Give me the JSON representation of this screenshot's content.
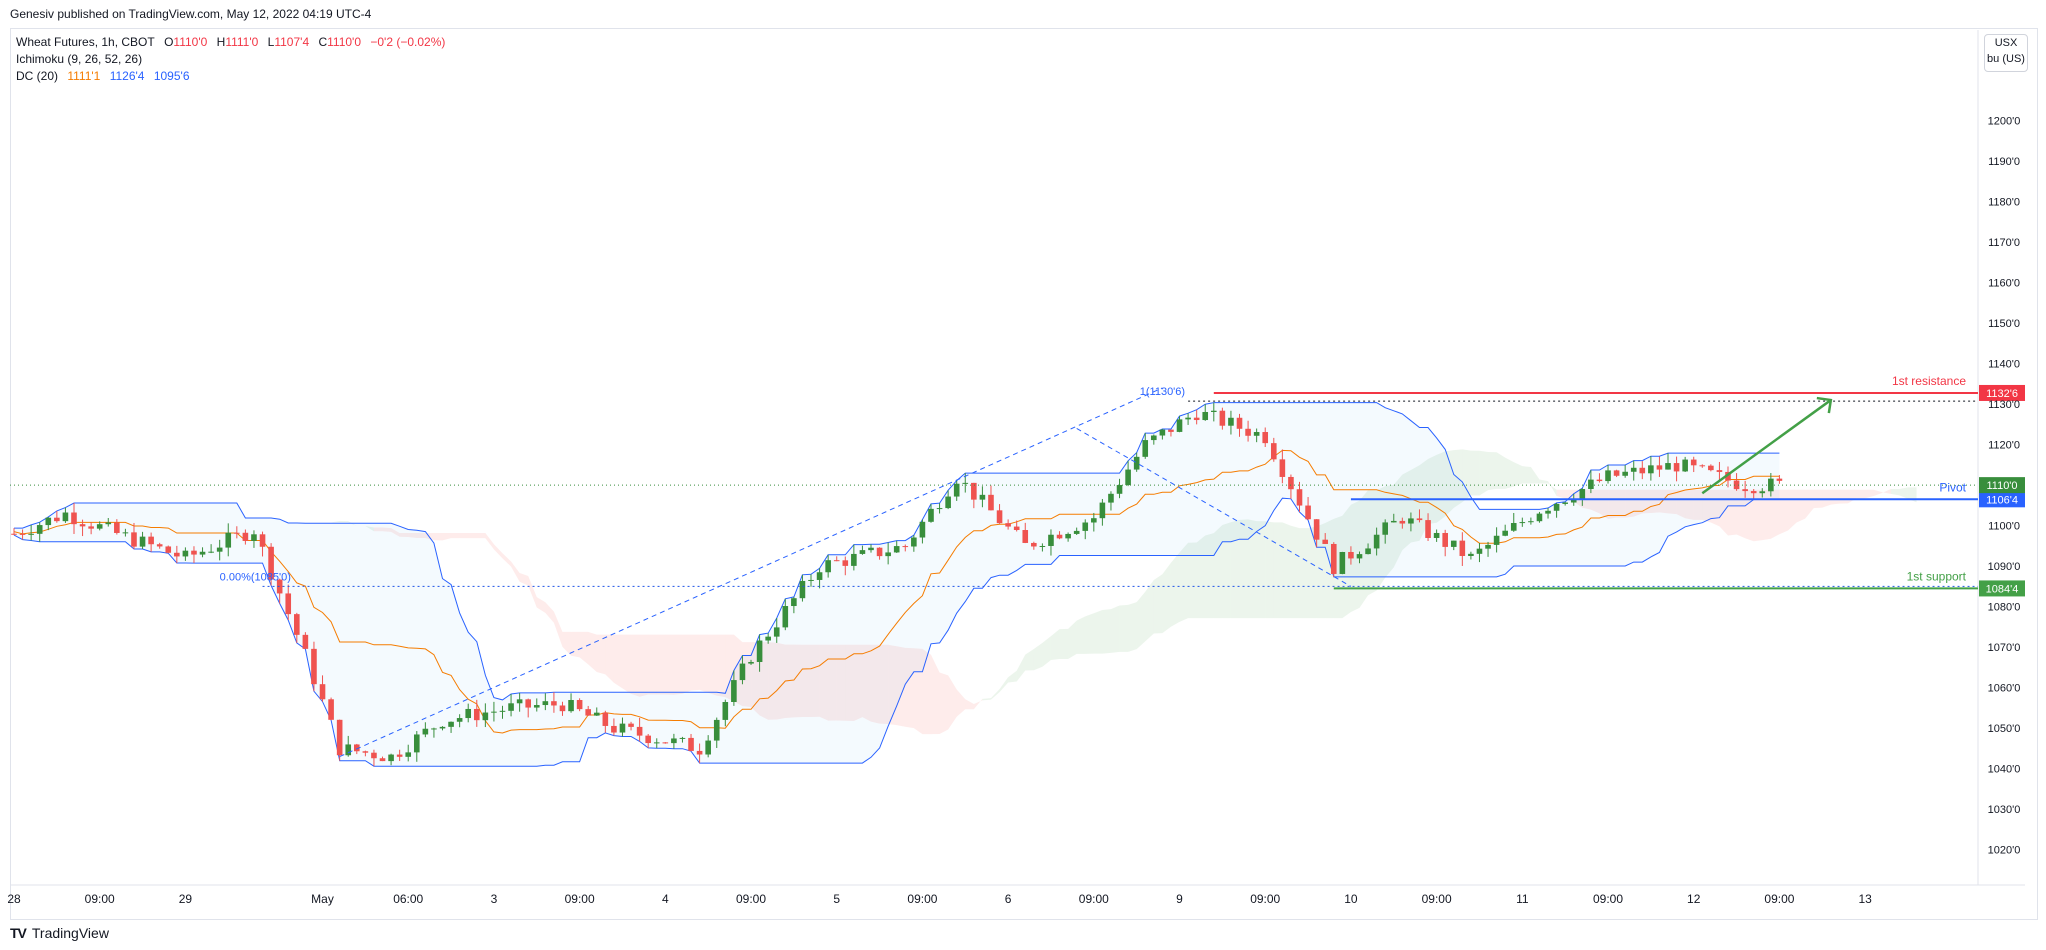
{
  "header": {
    "published": "Genesiv published on TradingView.com, May 12, 2022 04:19 UTC-4"
  },
  "legend": {
    "symbol": "Wheat Futures, 1h, CBOT",
    "ohlc": [
      {
        "k": "O",
        "v": "1110'0"
      },
      {
        "k": "H",
        "v": "1111'0"
      },
      {
        "k": "L",
        "v": "1107'4"
      },
      {
        "k": "C",
        "v": "1110'0"
      }
    ],
    "change": "−0'2 (−0.02%)",
    "ichimoku": "Ichimoku (9, 26, 52, 26)",
    "dc_label": "DC (20)",
    "dc_values": [
      {
        "v": "1111'1",
        "color": "#f57c00"
      },
      {
        "v": "1126'4",
        "color": "#2962ff"
      },
      {
        "v": "1095'6",
        "color": "#2962ff"
      }
    ]
  },
  "unit": {
    "line1": "USX",
    "line2": "bu (US)"
  },
  "footer": {
    "brand": "TradingView"
  },
  "colors": {
    "up": "#26a69a",
    "upFill": "#388e3c",
    "down": "#ef5350",
    "donchian": "#2962ff",
    "basis": "#f57c00",
    "resistance": "#f23645",
    "support": "#43a047",
    "pivot": "#2962ff"
  },
  "chart_data": {
    "type": "candlestick",
    "symbol": "Wheat Futures",
    "interval": "1h",
    "ylim": [
      1015,
      1210
    ],
    "y_ticks": [
      {
        "v": 1200,
        "label": "1200'0"
      },
      {
        "v": 1190,
        "label": "1190'0"
      },
      {
        "v": 1180,
        "label": "1180'0"
      },
      {
        "v": 1170,
        "label": "1170'0"
      },
      {
        "v": 1160,
        "label": "1160'0"
      },
      {
        "v": 1150,
        "label": "1150'0"
      },
      {
        "v": 1140,
        "label": "1140'0"
      },
      {
        "v": 1130,
        "label": "1130'0"
      },
      {
        "v": 1120,
        "label": "1120'0"
      },
      {
        "v": 1100,
        "label": "1100'0"
      },
      {
        "v": 1090,
        "label": "1090'0"
      },
      {
        "v": 1080,
        "label": "1080'0"
      },
      {
        "v": 1070,
        "label": "1070'0"
      },
      {
        "v": 1060,
        "label": "1060'0"
      },
      {
        "v": 1050,
        "label": "1050'0"
      },
      {
        "v": 1040,
        "label": "1040'0"
      },
      {
        "v": 1030,
        "label": "1030'0"
      },
      {
        "v": 1020,
        "label": "1020'0"
      }
    ],
    "x_ticks": [
      {
        "i": 0,
        "label": "28"
      },
      {
        "i": 10,
        "label": "09:00"
      },
      {
        "i": 20,
        "label": "29"
      },
      {
        "i": 36,
        "label": "May"
      },
      {
        "i": 46,
        "label": "06:00"
      },
      {
        "i": 56,
        "label": "3"
      },
      {
        "i": 66,
        "label": "09:00"
      },
      {
        "i": 76,
        "label": "4"
      },
      {
        "i": 86,
        "label": "09:00"
      },
      {
        "i": 96,
        "label": "5"
      },
      {
        "i": 106,
        "label": "09:00"
      },
      {
        "i": 116,
        "label": "6"
      },
      {
        "i": 126,
        "label": "09:00"
      },
      {
        "i": 136,
        "label": "9"
      },
      {
        "i": 146,
        "label": "09:00"
      },
      {
        "i": 156,
        "label": "10"
      },
      {
        "i": 166,
        "label": "09:00"
      },
      {
        "i": 176,
        "label": "11"
      },
      {
        "i": 186,
        "label": "09:00"
      },
      {
        "i": 196,
        "label": "12"
      },
      {
        "i": 206,
        "label": "09:00"
      },
      {
        "i": 216,
        "label": "13"
      }
    ],
    "key_points": [
      {
        "i": 0,
        "c": 1098
      },
      {
        "i": 6,
        "c": 1103
      },
      {
        "i": 12,
        "c": 1098
      },
      {
        "i": 20,
        "c": 1092
      },
      {
        "i": 28,
        "c": 1099
      },
      {
        "i": 34,
        "c": 1068
      },
      {
        "i": 38,
        "c": 1045
      },
      {
        "i": 44,
        "c": 1043
      },
      {
        "i": 50,
        "c": 1052
      },
      {
        "i": 58,
        "c": 1055
      },
      {
        "i": 64,
        "c": 1056
      },
      {
        "i": 70,
        "c": 1050
      },
      {
        "i": 80,
        "c": 1045
      },
      {
        "i": 86,
        "c": 1068
      },
      {
        "i": 94,
        "c": 1090
      },
      {
        "i": 104,
        "c": 1095
      },
      {
        "i": 110,
        "c": 1112
      },
      {
        "i": 118,
        "c": 1095
      },
      {
        "i": 126,
        "c": 1102
      },
      {
        "i": 132,
        "c": 1120
      },
      {
        "i": 138,
        "c": 1128
      },
      {
        "i": 146,
        "c": 1122
      },
      {
        "i": 154,
        "c": 1090
      },
      {
        "i": 162,
        "c": 1102
      },
      {
        "i": 170,
        "c": 1092
      },
      {
        "i": 178,
        "c": 1104
      },
      {
        "i": 186,
        "c": 1112
      },
      {
        "i": 194,
        "c": 1115
      },
      {
        "i": 202,
        "c": 1110
      }
    ],
    "levels": [
      {
        "name": "1st resistance",
        "value": 1132.75,
        "label": "1132'6",
        "color": "#f23645"
      },
      {
        "name": "Pivot",
        "value": 1106.5,
        "label": "1106'4",
        "color": "#2962ff"
      },
      {
        "name": "1st support",
        "value": 1084.5,
        "label": "1084'4",
        "color": "#43a047"
      }
    ],
    "last_price": {
      "value": 1110,
      "label": "1110'0"
    },
    "fib": [
      {
        "label": "1(1130'6)",
        "value": 1130.75
      },
      {
        "label": "0.00%(1085'0)",
        "value": 1085
      }
    ]
  }
}
